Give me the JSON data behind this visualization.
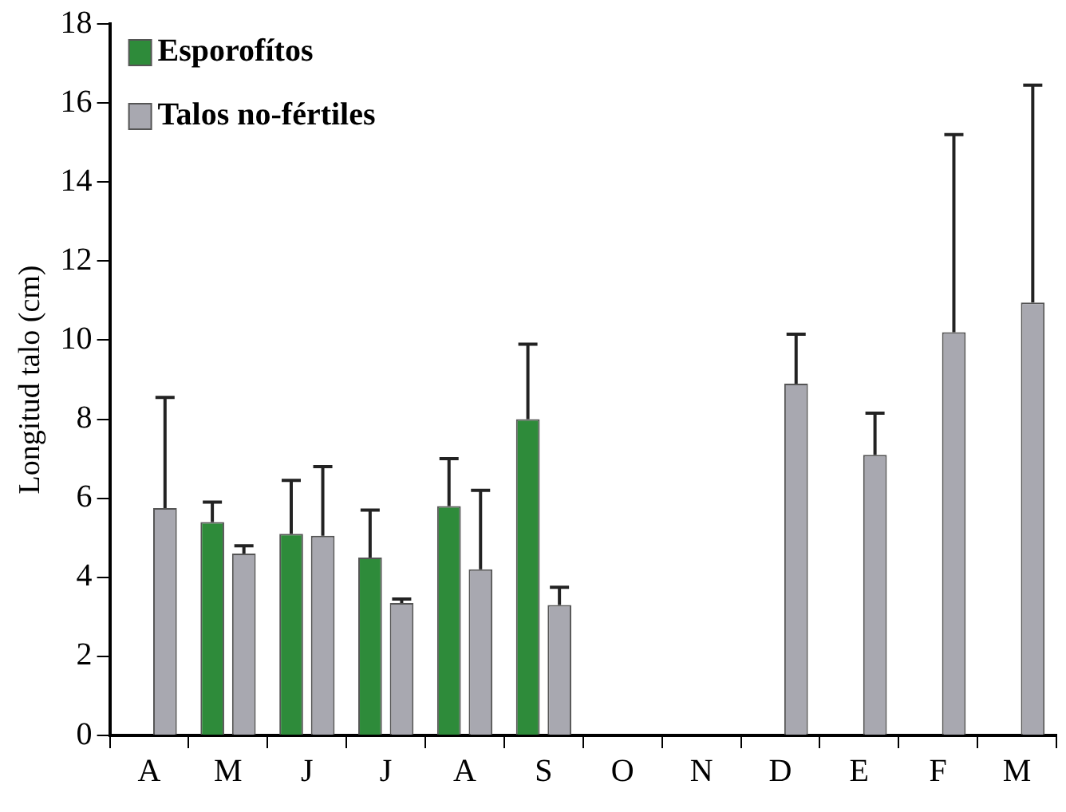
{
  "chart_data": {
    "type": "bar",
    "ylabel": "Longitud talo (cm)",
    "categories": [
      "A",
      "M",
      "J",
      "J",
      "A",
      "S",
      "O",
      "N",
      "D",
      "E",
      "F",
      "M"
    ],
    "series": [
      {
        "name": "Esporofítos",
        "color": "#2e8b3a",
        "values": [
          null,
          5.4,
          5.1,
          4.5,
          5.8,
          8.0,
          null,
          null,
          null,
          null,
          null,
          null
        ],
        "errors": [
          null,
          [
            5.4,
            5.9
          ],
          [
            5.1,
            6.45
          ],
          [
            4.5,
            5.7
          ],
          [
            5.8,
            7.0
          ],
          [
            8.0,
            9.9
          ],
          null,
          null,
          null,
          null,
          null,
          null
        ]
      },
      {
        "name": "Talos no-fértiles",
        "color": "#a8a8b0",
        "values": [
          5.75,
          4.6,
          5.05,
          3.35,
          4.2,
          3.3,
          null,
          null,
          8.9,
          7.1,
          10.2,
          10.95
        ],
        "errors": [
          [
            5.75,
            8.55
          ],
          [
            4.6,
            4.8
          ],
          [
            5.05,
            6.8
          ],
          [
            3.35,
            3.45
          ],
          [
            4.2,
            6.2
          ],
          [
            3.3,
            3.75
          ],
          null,
          null,
          [
            8.9,
            10.15
          ],
          [
            7.1,
            8.15
          ],
          [
            10.2,
            15.2
          ],
          [
            10.95,
            16.45
          ]
        ]
      }
    ],
    "ylim": [
      0,
      18
    ],
    "yticks": [
      0,
      2,
      4,
      6,
      8,
      10,
      12,
      14,
      16,
      18
    ],
    "grid": false,
    "legend": "top left"
  }
}
